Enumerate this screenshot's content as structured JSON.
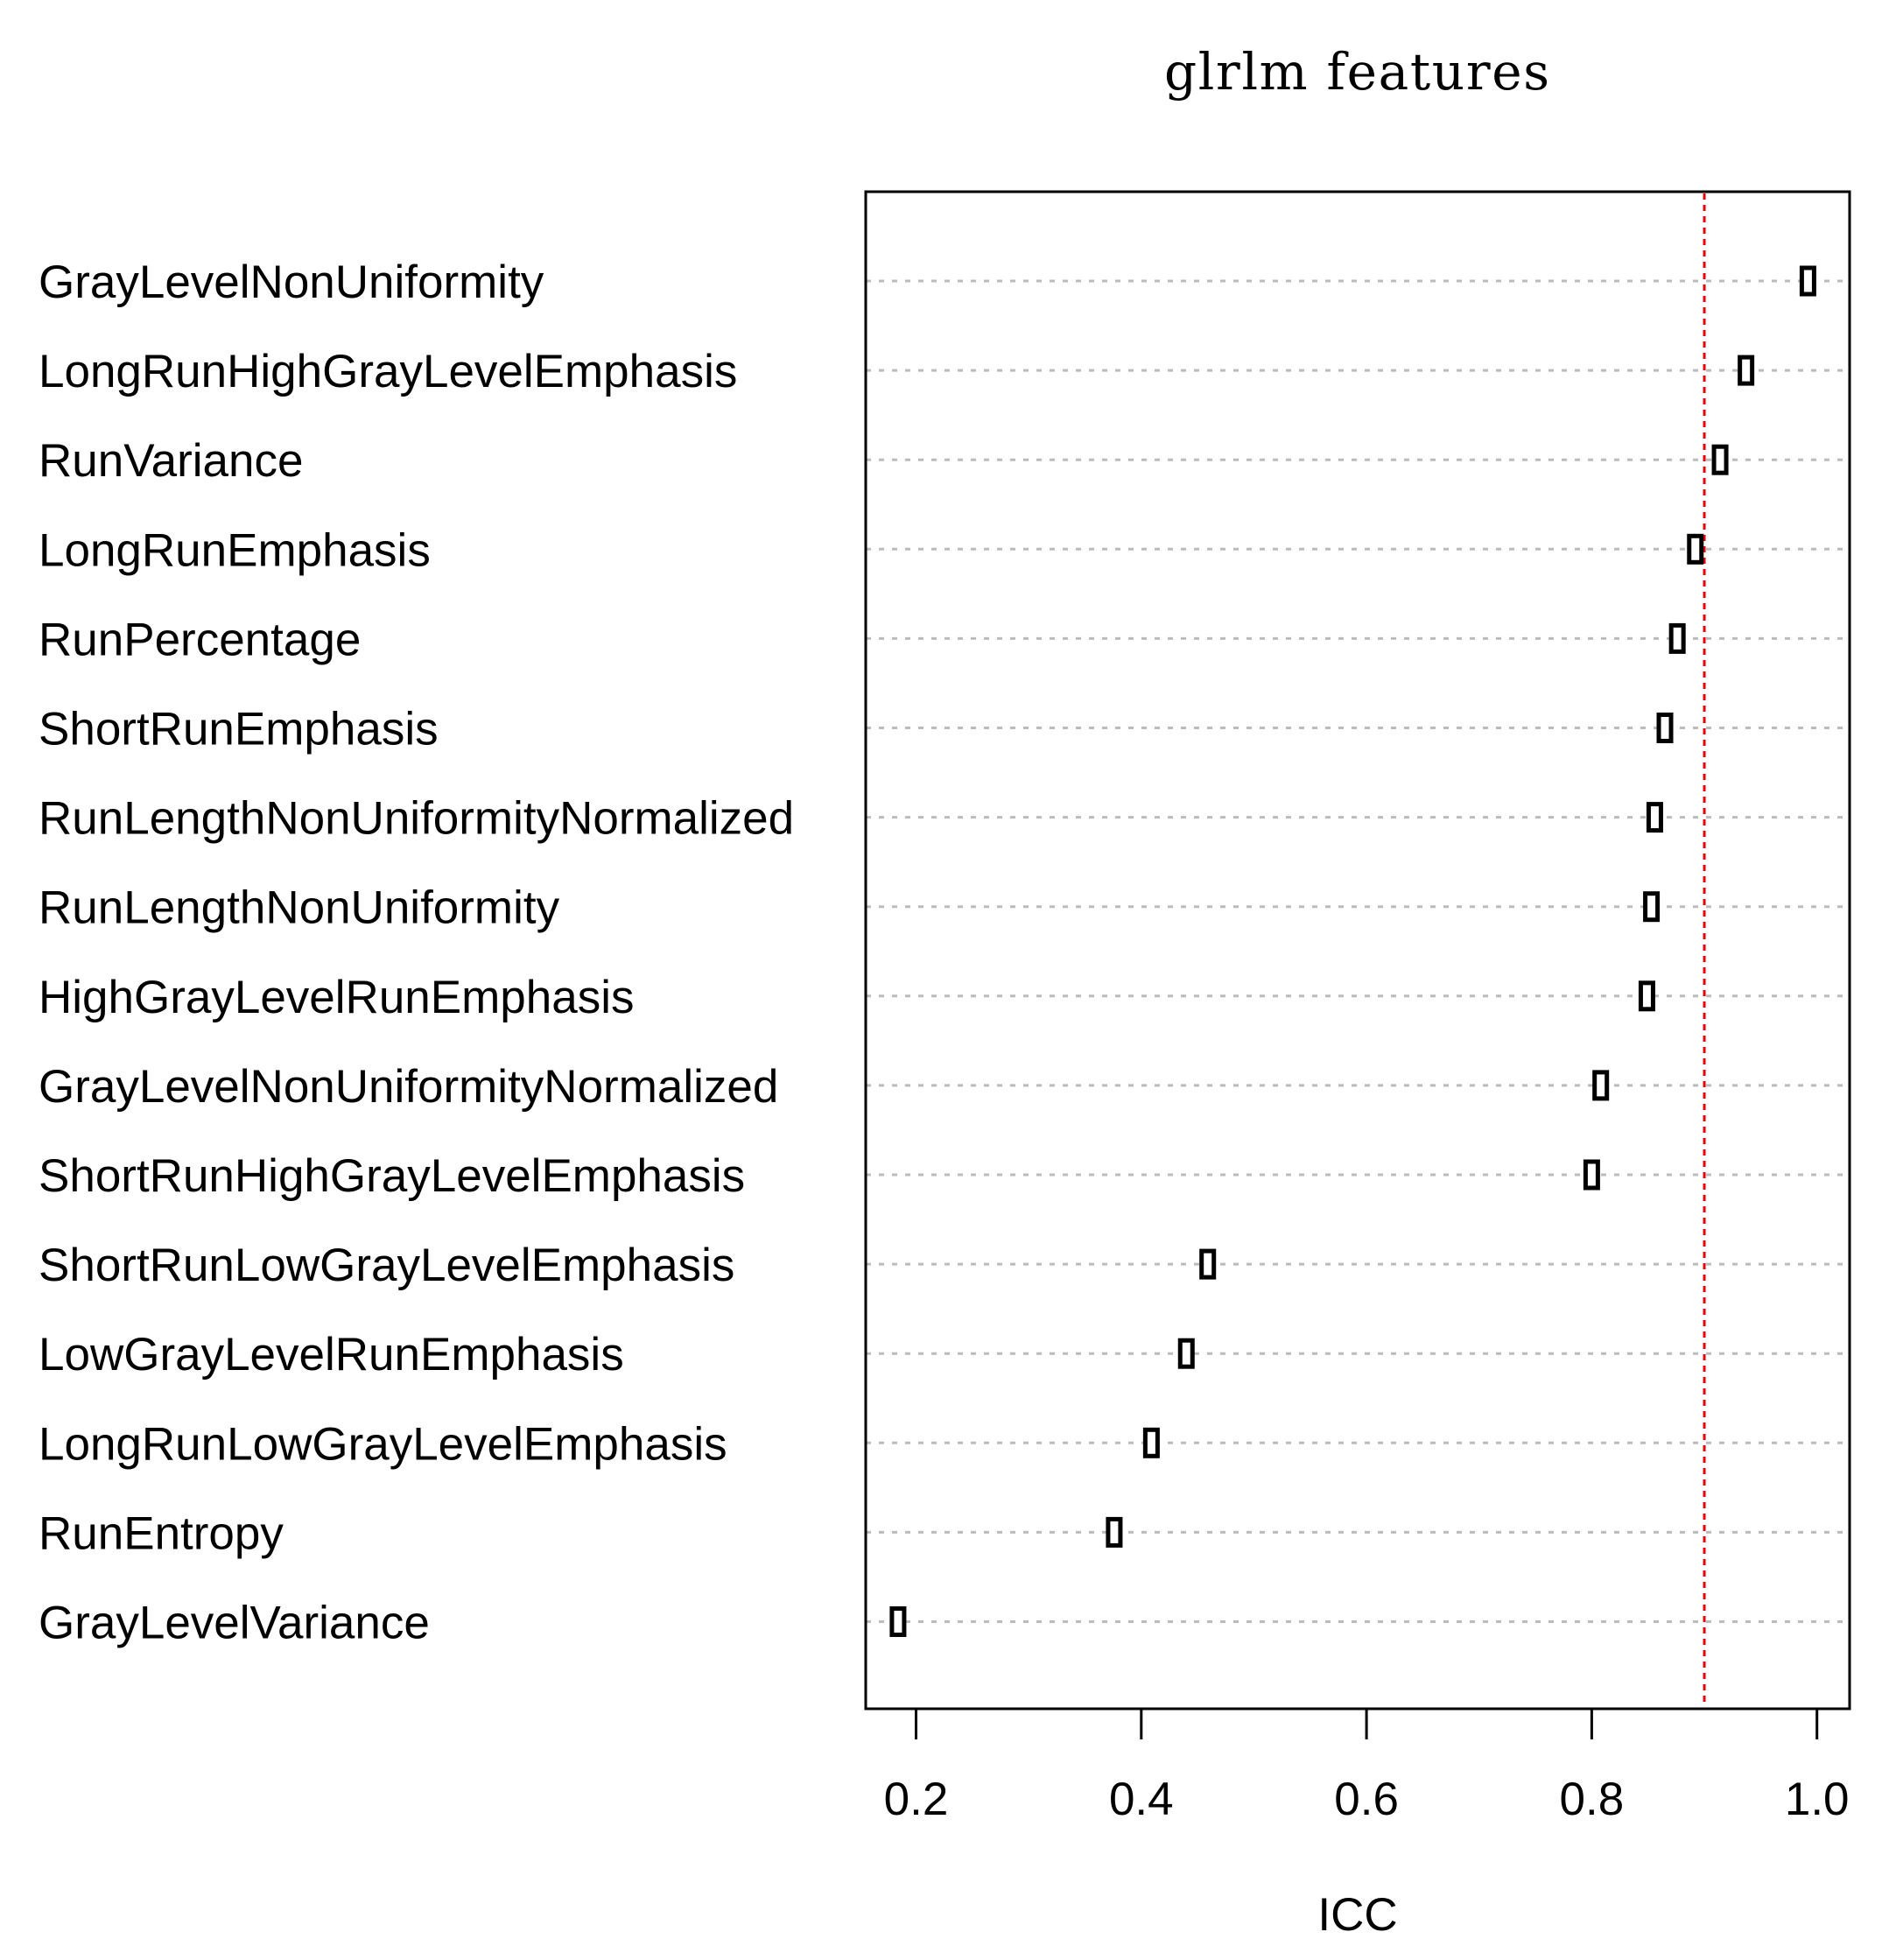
{
  "chart_data": {
    "type": "scatter",
    "title": "glrlm features",
    "xlabel": "ICC",
    "ylabel": "",
    "xlim": [
      0.178,
      1.014
    ],
    "xticks": [
      "0.2",
      "0.4",
      "0.6",
      "0.8",
      "1.0"
    ],
    "categories": [
      "GrayLevelNonUniformity",
      "LongRunHighGrayLevelEmphasis",
      "RunVariance",
      "LongRunEmphasis",
      "RunPercentage",
      "ShortRunEmphasis",
      "RunLengthNonUniformityNormalized",
      "RunLengthNonUniformity",
      "HighGrayLevelRunEmphasis",
      "GrayLevelNonUniformityNormalized",
      "ShortRunHighGrayLevelEmphasis",
      "ShortRunLowGrayLevelEmphasis",
      "LowGrayLevelRunEmphasis",
      "LongRunLowGrayLevelEmphasis",
      "RunEntropy",
      "GrayLevelVariance"
    ],
    "values": [
      0.992,
      0.937,
      0.914,
      0.892,
      0.876,
      0.865,
      0.856,
      0.853,
      0.849,
      0.808,
      0.8,
      0.459,
      0.44,
      0.409,
      0.376,
      0.184
    ],
    "reference_line": {
      "x": 0.9,
      "color": "#e8000b",
      "style": "dashed"
    },
    "grid": "horizontal-dotted",
    "gridline_color": "#bbbbbb",
    "marker_color": "#000000"
  }
}
